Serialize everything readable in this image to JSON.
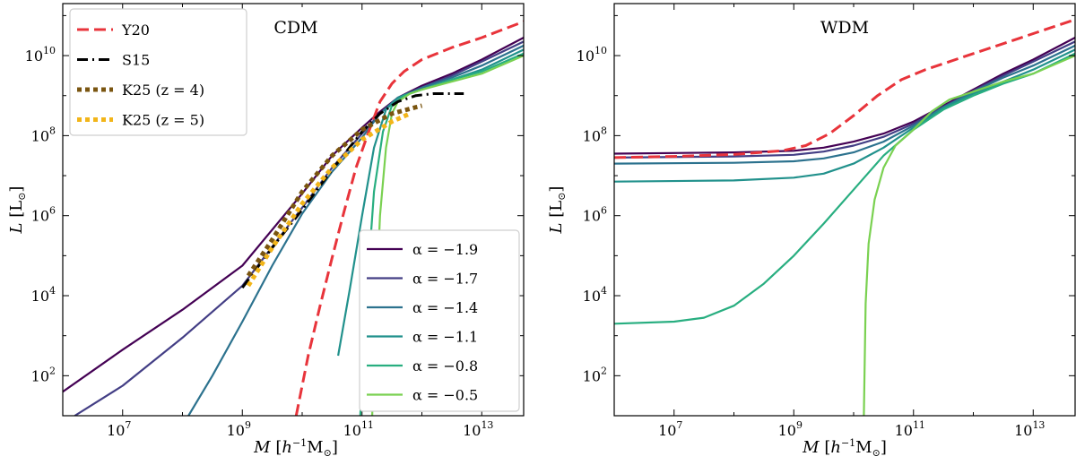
{
  "chart_data": [
    {
      "type": "line",
      "panel": "left",
      "title": "CDM",
      "xlabel": "M  [h⁻¹M⊙]",
      "ylabel": "L  [L⊙]",
      "xscale": "log",
      "yscale": "log",
      "xlim_log10": [
        6.0,
        13.7
      ],
      "ylim_log10": [
        1.0,
        11.3
      ],
      "x_ticks": [
        {
          "log": 7,
          "label": "10",
          "exp": "7"
        },
        {
          "log": 9,
          "label": "10",
          "exp": "9"
        },
        {
          "log": 11,
          "label": "10",
          "exp": "11"
        },
        {
          "log": 13,
          "label": "10",
          "exp": "13"
        }
      ],
      "y_ticks": [
        {
          "log": 2,
          "label": "10",
          "exp": "2"
        },
        {
          "log": 4,
          "label": "10",
          "exp": "4"
        },
        {
          "log": 6,
          "label": "10",
          "exp": "6"
        },
        {
          "log": 8,
          "label": "10",
          "exp": "8"
        },
        {
          "log": 10,
          "label": "10",
          "exp": "10"
        }
      ],
      "legend_top_left": [
        {
          "name": "Y20",
          "color": "#e8343b",
          "style": "dashed"
        },
        {
          "name": "S15",
          "color": "#000000",
          "style": "dashdot"
        },
        {
          "name": "K25 (z = 4)",
          "color": "#7a5510",
          "style": "dotted"
        },
        {
          "name": "K25 (z = 5)",
          "color": "#f2b519",
          "style": "dotted"
        }
      ],
      "legend_bottom_right": [
        {
          "name": "α = −1.9",
          "color": "#440154"
        },
        {
          "name": "α = −1.7",
          "color": "#433e85"
        },
        {
          "name": "α = −1.4",
          "color": "#2c728e"
        },
        {
          "name": "α = −1.1",
          "color": "#21918c"
        },
        {
          "name": "α = −0.8",
          "color": "#28ae80"
        },
        {
          "name": "α = −0.5",
          "color": "#7ad151"
        }
      ],
      "series": [
        {
          "name": "α = −1.9",
          "color": "#440154",
          "style": "solid",
          "x_log10": [
            6.0,
            7.0,
            8.0,
            9.0,
            10.0,
            10.5,
            11.0,
            11.3,
            11.6,
            12.0,
            12.5,
            13.0,
            13.7
          ],
          "y_log10": [
            1.6,
            2.65,
            3.65,
            4.75,
            6.55,
            7.5,
            8.2,
            8.6,
            8.95,
            9.25,
            9.55,
            9.9,
            10.45
          ]
        },
        {
          "name": "α = −1.7",
          "color": "#433e85",
          "style": "solid",
          "x_log10": [
            6.2,
            7.0,
            8.0,
            9.0,
            10.0,
            10.5,
            11.0,
            11.3,
            11.6,
            12.0,
            12.5,
            13.0,
            13.7
          ],
          "y_log10": [
            1.0,
            1.75,
            2.95,
            4.25,
            6.2,
            7.2,
            8.05,
            8.55,
            8.95,
            9.2,
            9.5,
            9.85,
            10.35
          ]
        },
        {
          "name": "α = −1.4",
          "color": "#2c728e",
          "style": "solid",
          "x_log10": [
            8.1,
            8.5,
            9.0,
            9.5,
            10.0,
            10.5,
            11.0,
            11.3,
            11.6,
            12.0,
            12.5,
            13.0,
            13.7
          ],
          "y_log10": [
            1.0,
            2.0,
            3.35,
            4.75,
            6.05,
            7.1,
            7.95,
            8.55,
            8.95,
            9.2,
            9.45,
            9.75,
            10.25
          ]
        },
        {
          "name": "α = −1.1",
          "color": "#21918c",
          "style": "solid",
          "x_log10": [
            10.6,
            10.8,
            11.0,
            11.2,
            11.4,
            11.6,
            12.0,
            12.5,
            13.0,
            13.7
          ],
          "y_log10": [
            2.5,
            4.2,
            6.0,
            7.7,
            8.65,
            8.95,
            9.15,
            9.4,
            9.65,
            10.15
          ]
        },
        {
          "name": "α = −0.8",
          "color": "#28ae80",
          "style": "solid",
          "x_log10": [
            10.97,
            11.02,
            11.1,
            11.2,
            11.35,
            11.5,
            11.7,
            12.0,
            12.5,
            13.0,
            13.7
          ],
          "y_log10": [
            1.0,
            2.5,
            4.5,
            6.6,
            8.1,
            8.75,
            9.0,
            9.15,
            9.4,
            9.6,
            10.05
          ]
        },
        {
          "name": "α = −0.5",
          "color": "#7ad151",
          "style": "solid",
          "x_log10": [
            11.17,
            11.2,
            11.25,
            11.3,
            11.4,
            11.5,
            11.6,
            11.8,
            12.0,
            12.5,
            13.0,
            13.7
          ],
          "y_log10": [
            1.0,
            2.5,
            4.3,
            6.0,
            7.7,
            8.55,
            8.85,
            9.05,
            9.15,
            9.35,
            9.55,
            10.0
          ]
        },
        {
          "name": "Y20",
          "color": "#e8343b",
          "style": "dashed",
          "x_log10": [
            9.9,
            10.1,
            10.3,
            10.5,
            10.7,
            10.9,
            11.1,
            11.3,
            11.5,
            11.7,
            12.0,
            12.5,
            13.0,
            13.7
          ],
          "y_log10": [
            1.0,
            2.5,
            3.75,
            4.95,
            6.1,
            7.2,
            8.05,
            8.85,
            9.3,
            9.6,
            9.9,
            10.2,
            10.45,
            10.85
          ]
        },
        {
          "name": "S15",
          "color": "#000000",
          "style": "dashdot",
          "x_log10": [
            9.0,
            9.5,
            10.0,
            10.5,
            11.0,
            11.3,
            11.6,
            11.9,
            12.2,
            12.7
          ],
          "y_log10": [
            4.2,
            5.2,
            6.15,
            7.15,
            8.1,
            8.55,
            8.85,
            9.0,
            9.05,
            9.05
          ]
        },
        {
          "name": "K25 (z = 4)",
          "color": "#7a5510",
          "style": "dotted",
          "x_log10": [
            9.1,
            9.5,
            10.0,
            10.5,
            11.0,
            11.5,
            12.0
          ],
          "y_log10": [
            4.5,
            5.4,
            6.6,
            7.5,
            8.15,
            8.55,
            8.75
          ]
        },
        {
          "name": "K25 (z = 5)",
          "color": "#f2b519",
          "style": "dotted",
          "x_log10": [
            9.1,
            9.5,
            10.0,
            10.5,
            11.0,
            11.5,
            11.8
          ],
          "y_log10": [
            4.25,
            5.2,
            6.3,
            7.2,
            7.9,
            8.35,
            8.55
          ]
        }
      ]
    },
    {
      "type": "line",
      "panel": "right",
      "title": "WDM",
      "xlabel": "M  [h⁻¹M⊙]",
      "ylabel": "L  [L⊙]",
      "xscale": "log",
      "yscale": "log",
      "xlim_log10": [
        6.0,
        13.7
      ],
      "ylim_log10": [
        1.0,
        11.3
      ],
      "x_ticks": [
        {
          "log": 7,
          "label": "10",
          "exp": "7"
        },
        {
          "log": 9,
          "label": "10",
          "exp": "9"
        },
        {
          "log": 11,
          "label": "10",
          "exp": "11"
        },
        {
          "log": 13,
          "label": "10",
          "exp": "13"
        }
      ],
      "y_ticks": [
        {
          "log": 2,
          "label": "10",
          "exp": "2"
        },
        {
          "log": 4,
          "label": "10",
          "exp": "4"
        },
        {
          "log": 6,
          "label": "10",
          "exp": "6"
        },
        {
          "log": 8,
          "label": "10",
          "exp": "8"
        },
        {
          "log": 10,
          "label": "10",
          "exp": "10"
        }
      ],
      "series": [
        {
          "name": "α = −1.9",
          "color": "#440154",
          "style": "solid",
          "x_log10": [
            6.0,
            8.0,
            9.0,
            9.5,
            10.0,
            10.5,
            11.0,
            11.5,
            12.0,
            12.5,
            13.0,
            13.7
          ],
          "y_log10": [
            7.55,
            7.58,
            7.62,
            7.7,
            7.85,
            8.05,
            8.35,
            8.75,
            9.15,
            9.55,
            9.9,
            10.45
          ]
        },
        {
          "name": "α = −1.7",
          "color": "#433e85",
          "style": "solid",
          "x_log10": [
            6.0,
            8.0,
            9.0,
            9.5,
            10.0,
            10.5,
            11.0,
            11.5,
            12.0,
            12.5,
            13.0,
            13.7
          ],
          "y_log10": [
            7.45,
            7.48,
            7.52,
            7.6,
            7.75,
            7.97,
            8.3,
            8.72,
            9.12,
            9.5,
            9.85,
            10.35
          ]
        },
        {
          "name": "α = −1.4",
          "color": "#2c728e",
          "style": "solid",
          "x_log10": [
            6.0,
            8.0,
            9.0,
            9.5,
            10.0,
            10.5,
            11.0,
            11.5,
            12.0,
            12.5,
            13.0,
            13.7
          ],
          "y_log10": [
            7.3,
            7.32,
            7.36,
            7.43,
            7.58,
            7.85,
            8.25,
            8.7,
            9.1,
            9.45,
            9.75,
            10.25
          ]
        },
        {
          "name": "α = −1.1",
          "color": "#21918c",
          "style": "solid",
          "x_log10": [
            6.0,
            8.0,
            9.0,
            9.5,
            10.0,
            10.5,
            11.0,
            11.5,
            12.0,
            12.5,
            13.0,
            13.7
          ],
          "y_log10": [
            6.85,
            6.88,
            6.95,
            7.05,
            7.3,
            7.7,
            8.2,
            8.7,
            9.05,
            9.35,
            9.65,
            10.15
          ]
        },
        {
          "name": "α = −0.8",
          "color": "#28ae80",
          "style": "solid",
          "x_log10": [
            6.0,
            7.0,
            7.5,
            8.0,
            8.5,
            9.0,
            9.5,
            10.0,
            10.5,
            11.0,
            11.5,
            12.0,
            12.5,
            13.0,
            13.7
          ],
          "y_log10": [
            3.3,
            3.35,
            3.45,
            3.75,
            4.3,
            5.0,
            5.8,
            6.65,
            7.5,
            8.15,
            8.65,
            9.0,
            9.3,
            9.55,
            10.05
          ]
        },
        {
          "name": "α = −0.5",
          "color": "#7ad151",
          "style": "solid",
          "x_log10": [
            10.17,
            10.2,
            10.25,
            10.35,
            10.5,
            10.7,
            11.0,
            11.3,
            11.6,
            12.0,
            12.5,
            13.0,
            13.7
          ],
          "y_log10": [
            1.0,
            3.8,
            5.3,
            6.4,
            7.2,
            7.75,
            8.15,
            8.6,
            8.9,
            9.1,
            9.35,
            9.55,
            10.0
          ]
        },
        {
          "name": "Y20",
          "color": "#e8343b",
          "style": "dashed",
          "x_log10": [
            6.0,
            7.0,
            8.0,
            8.8,
            9.2,
            9.6,
            10.0,
            10.4,
            10.8,
            11.2,
            11.6,
            12.0,
            12.5,
            13.0,
            13.7
          ],
          "y_log10": [
            7.45,
            7.48,
            7.53,
            7.62,
            7.75,
            8.05,
            8.5,
            9.0,
            9.4,
            9.65,
            9.85,
            10.05,
            10.3,
            10.55,
            10.9
          ]
        }
      ]
    }
  ]
}
